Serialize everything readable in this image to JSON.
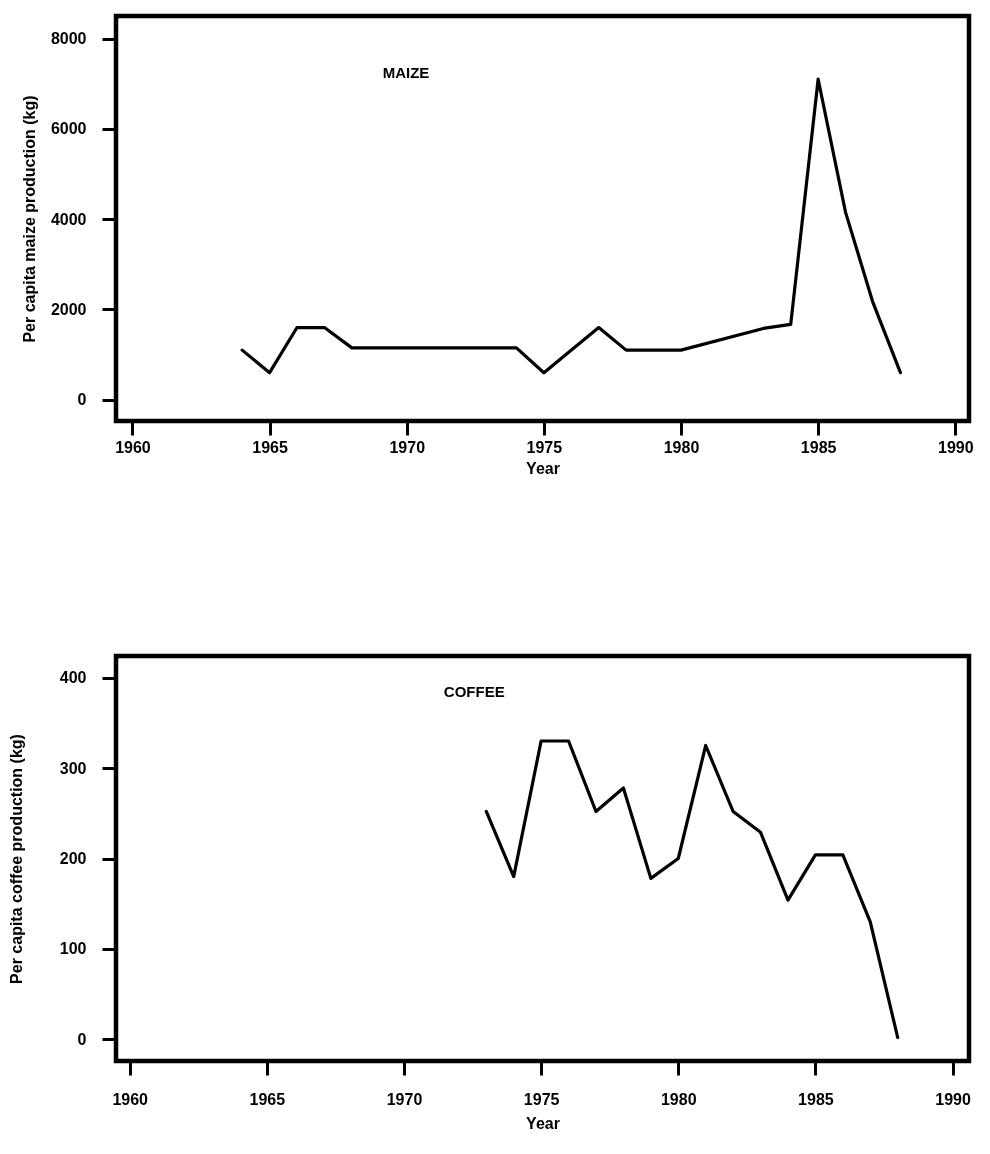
{
  "chart_data": [
    {
      "type": "line",
      "ylabel": "Per capita maize production (kg)",
      "xlabel": "Year",
      "annotations": [
        "MAIZE"
      ],
      "x": [
        1964,
        1965,
        1966,
        1967,
        1968,
        1974,
        1975,
        1977,
        1978,
        1980,
        1983,
        1984,
        1985,
        1986,
        1987,
        1988
      ],
      "values": [
        1100,
        600,
        1600,
        1600,
        1150,
        1150,
        600,
        1600,
        1100,
        1100,
        1580,
        1670,
        7100,
        4150,
        2150,
        600
      ],
      "color": "#000000",
      "xlim": [
        1959.4,
        1990.5
      ],
      "ylim": [
        -470,
        8500
      ],
      "xticks": [
        1960,
        1965,
        1970,
        1975,
        1980,
        1985,
        1990
      ],
      "yticks": [
        0,
        2000,
        4000,
        6000,
        8000
      ]
    },
    {
      "type": "line",
      "ylabel": "Per capita coffee production (kg)",
      "xlabel": "Year",
      "annotations": [
        "COFFEE"
      ],
      "x": [
        1973,
        1974,
        1975,
        1976,
        1977,
        1978,
        1979,
        1980,
        1981,
        1982,
        1983,
        1984,
        1985,
        1986,
        1987,
        1988
      ],
      "values": [
        252,
        180,
        330,
        330,
        252,
        278,
        178,
        200,
        325,
        252,
        229,
        154,
        204,
        204,
        130,
        2
      ],
      "color": "#000000",
      "xlim": [
        1959.5,
        1990.6
      ],
      "ylim": [
        -24,
        424
      ],
      "xticks": [
        1960,
        1965,
        1970,
        1975,
        1980,
        1985,
        1990
      ],
      "yticks": [
        0,
        100,
        200,
        300,
        400
      ]
    }
  ]
}
